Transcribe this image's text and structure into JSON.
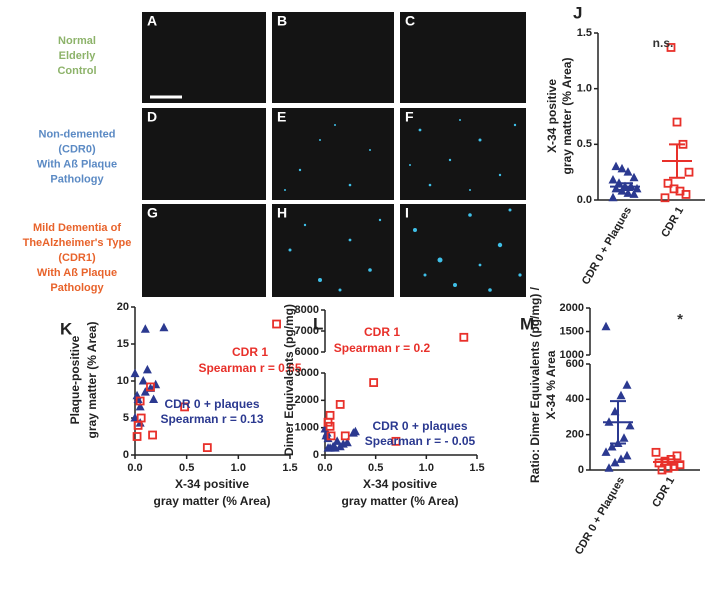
{
  "micrographs": {
    "panels": [
      "A",
      "B",
      "C",
      "D",
      "E",
      "F",
      "G",
      "H",
      "I"
    ],
    "row_labels": [
      {
        "lines": [
          "Normal",
          "Elderly",
          "Control"
        ],
        "color": "#8db36a"
      },
      {
        "lines": [
          "Non-demented",
          "(CDR0)",
          "With Aß Plaque",
          "Pathology"
        ],
        "color": "#5b8ac4"
      },
      {
        "lines": [
          "Mild Dementia of",
          "TheAlzheimer's Type",
          "(CDR1)",
          "With Aß Plaque",
          "Pathology"
        ],
        "color": "#e8632b"
      }
    ]
  },
  "chart_data": [
    {
      "type": "strip",
      "panel": "J",
      "y_label": [
        "X-34 positive",
        "gray matter (% Area)"
      ],
      "categories": [
        "CDR 0 + Plaques",
        "CDR 1"
      ],
      "ylim": [
        0,
        1.5
      ],
      "yticks": [
        {
          "value": 0,
          "label": "0.0"
        },
        {
          "value": 0.5,
          "label": "0.5"
        },
        {
          "value": 1,
          "label": "1.0"
        },
        {
          "value": 1.5,
          "label": "1.5"
        }
      ],
      "series": [
        {
          "color": "#2b3990",
          "marker": "triangle",
          "values": [
            0.02,
            0.05,
            0.06,
            0.08,
            0.1,
            0.1,
            0.12,
            0.12,
            0.15,
            0.18,
            0.2,
            0.25,
            0.28,
            0.3
          ],
          "mean": 0.12,
          "error": 0.03
        },
        {
          "color": "#e8302a",
          "marker": "square",
          "values": [
            0.02,
            0.05,
            0.08,
            0.1,
            0.15,
            0.25,
            0.5,
            0.7,
            1.37
          ],
          "mean": 0.35,
          "error": 0.15
        }
      ],
      "annotations": [
        {
          "lines": [
            "n.s."
          ],
          "color": "#333333"
        }
      ]
    },
    {
      "type": "scatter",
      "panel": "K",
      "x_label": [
        "X-34 positive",
        "gray matter (% Area)"
      ],
      "y_label": [
        "Plaque-positive",
        "gray matter (% Area)"
      ],
      "xlim": [
        0,
        1.5
      ],
      "xticks": [
        {
          "value": 0,
          "label": "0.0"
        },
        {
          "value": 0.5,
          "label": "0.5"
        },
        {
          "value": 1,
          "label": "1.0"
        },
        {
          "value": 1.5,
          "label": "1.5"
        }
      ],
      "ylim": [
        0,
        20
      ],
      "yticks": [
        0,
        5,
        10,
        15,
        20
      ],
      "series": [
        {
          "color": "#2b3990",
          "marker": "triangle",
          "x": [
            0.0,
            0.02,
            0.03,
            0.05,
            0.08,
            0.1,
            0.12,
            0.15,
            0.18,
            0.2,
            0.28,
            0.1,
            0.0,
            0.05
          ],
          "y": [
            11,
            8,
            7.5,
            6.5,
            10,
            8.5,
            11.5,
            9,
            7.5,
            9.5,
            17.2,
            17,
            5,
            4.3
          ]
        },
        {
          "color": "#e8302a",
          "marker": "square",
          "x": [
            1.37,
            0.48,
            0.7,
            0.15,
            0.17,
            0.05,
            0.06,
            0.03,
            0.02
          ],
          "y": [
            17.7,
            6.5,
            1.0,
            9.2,
            2.7,
            7.3,
            5.0,
            4.0,
            2.5
          ]
        }
      ],
      "annotations": [
        {
          "lines": [
            "CDR 1",
            "Spearman r = 0.65"
          ],
          "color": "#e8302a"
        },
        {
          "lines": [
            "CDR 0 + plaques",
            "Spearman r = 0.13"
          ],
          "color": "#2b3990"
        }
      ]
    },
    {
      "type": "scatter",
      "panel": "L",
      "x_label": [
        "X-34 positive",
        "gray matter (% Area)"
      ],
      "y_label": [
        "Dimer Equivalents (pg/mg)"
      ],
      "xlim": [
        0,
        1.5
      ],
      "xticks": [
        {
          "value": 0,
          "label": "0.0"
        },
        {
          "value": 0.5,
          "label": "0.5"
        },
        {
          "value": 1,
          "label": "1.0"
        },
        {
          "value": 1.5,
          "label": "1.5"
        }
      ],
      "ylim": [
        0,
        8000
      ],
      "ybreak": [
        3000,
        6000
      ],
      "yticks": [
        0,
        1000,
        2000,
        3000,
        6000,
        7000,
        8000
      ],
      "series": [
        {
          "color": "#2b3990",
          "marker": "triangle",
          "x": [
            0.0,
            0.02,
            0.03,
            0.05,
            0.08,
            0.1,
            0.12,
            0.15,
            0.18,
            0.22,
            0.28,
            0.3,
            0.03,
            0.01
          ],
          "y": [
            950,
            800,
            600,
            250,
            300,
            250,
            500,
            300,
            400,
            450,
            800,
            850,
            250,
            700
          ]
        },
        {
          "color": "#e8302a",
          "marker": "square",
          "x": [
            1.37,
            0.48,
            0.7,
            0.15,
            0.05,
            0.03,
            0.05,
            0.2,
            0.06
          ],
          "y": [
            6700,
            2650,
            500,
            1850,
            1450,
            1200,
            1050,
            700,
            700
          ]
        }
      ],
      "annotations": [
        {
          "lines": [
            "CDR 1",
            "Spearman r = 0.2"
          ],
          "color": "#e8302a"
        },
        {
          "lines": [
            "CDR 0 + plaques",
            "Spearman r = - 0.05"
          ],
          "color": "#2b3990"
        }
      ]
    },
    {
      "type": "strip",
      "panel": "M",
      "y_label": [
        "Ratio: Dimer Equivalents (pg/mg) /",
        "X-34 % Area"
      ],
      "categories": [
        "CDR 0 + Plaques",
        "CDR 1"
      ],
      "ylim": [
        0,
        2000
      ],
      "ybreak": [
        600,
        1000
      ],
      "yticks": [
        0,
        200,
        400,
        600,
        1000,
        1500,
        2000
      ],
      "series": [
        {
          "color": "#2b3990",
          "marker": "triangle",
          "values": [
            1600,
            480,
            420,
            330,
            270,
            250,
            180,
            150,
            130,
            100,
            80,
            60,
            40,
            10
          ],
          "mean": 270,
          "error": 120
        },
        {
          "color": "#e8302a",
          "marker": "square",
          "values": [
            100,
            80,
            60,
            50,
            40,
            30,
            20,
            10,
            0
          ],
          "mean": 45,
          "error": 15
        }
      ],
      "annotations": [
        {
          "lines": [
            "*"
          ],
          "color": "#333333"
        }
      ]
    }
  ]
}
